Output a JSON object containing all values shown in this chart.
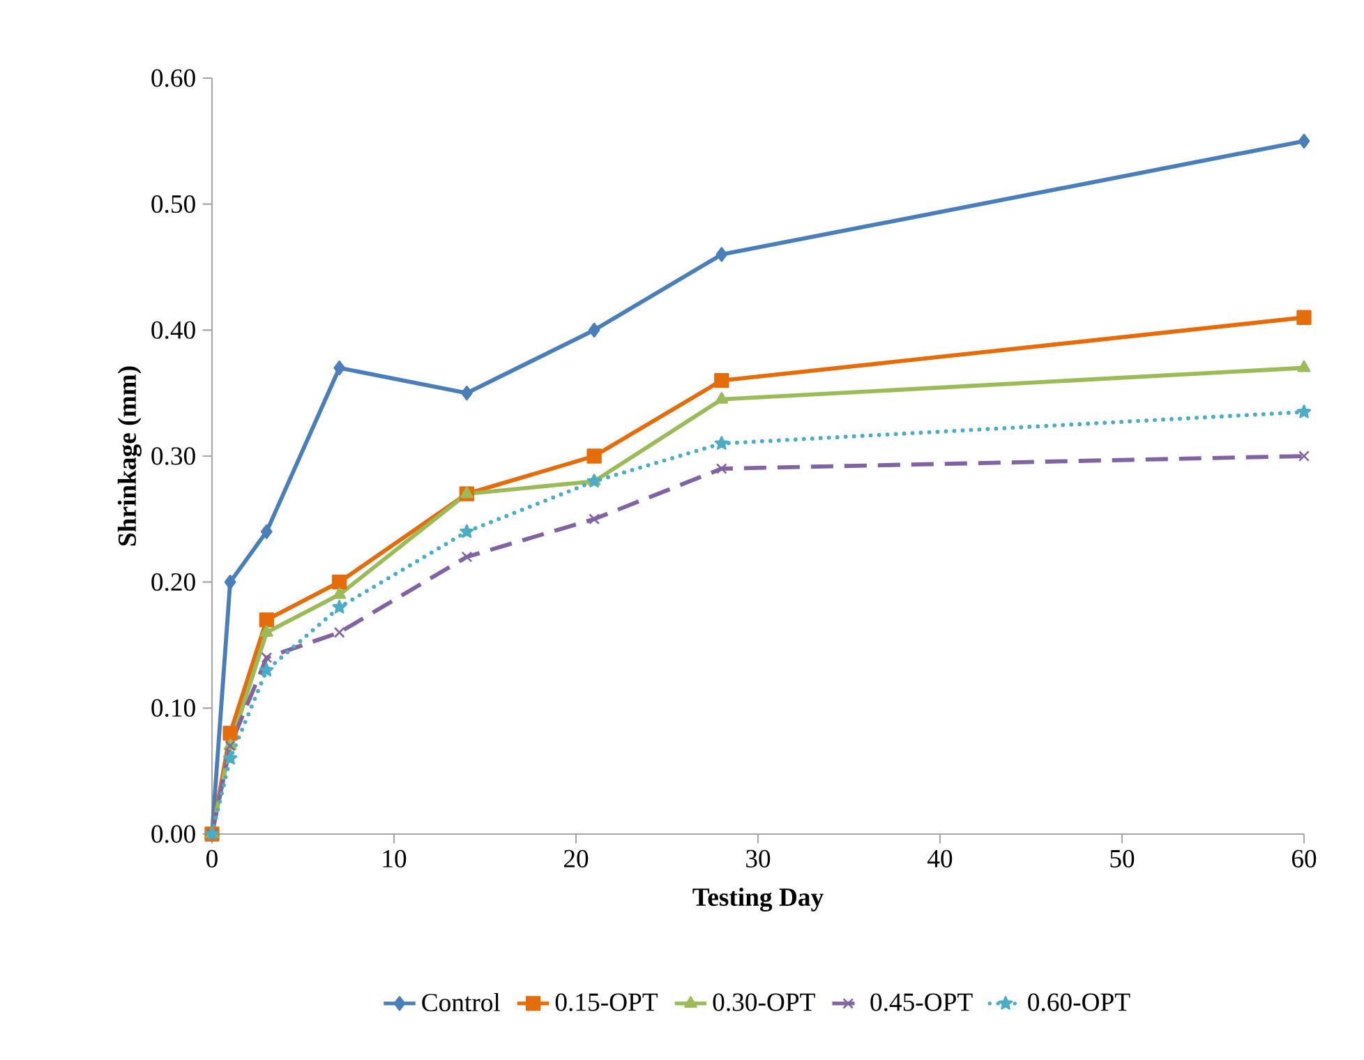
{
  "chart_data": {
    "type": "line",
    "xlabel": "Testing Day",
    "ylabel": "Shrinkage  (mm)",
    "x": [
      0,
      1,
      3,
      7,
      14,
      21,
      28,
      60
    ],
    "series": [
      {
        "name": "Control",
        "color": "#4a7ebb",
        "marker": "diamond",
        "line_style": "solid",
        "values": [
          0,
          0.2,
          0.24,
          0.37,
          0.35,
          0.4,
          0.46,
          0.55
        ]
      },
      {
        "name": "0.15-OPT",
        "color": "#e46c0a",
        "marker": "square",
        "line_style": "solid",
        "values": [
          0,
          0.08,
          0.17,
          0.2,
          0.27,
          0.3,
          0.36,
          0.41
        ]
      },
      {
        "name": "0.30-OPT",
        "color": "#9bbb59",
        "marker": "triangle",
        "line_style": "solid",
        "values": [
          0,
          0.07,
          0.16,
          0.19,
          0.27,
          0.28,
          0.345,
          0.37
        ]
      },
      {
        "name": "0.45-OPT",
        "color": "#8064a2",
        "marker": "cross",
        "line_style": "dashed",
        "values": [
          0,
          0.07,
          0.14,
          0.16,
          0.22,
          0.25,
          0.29,
          0.3
        ]
      },
      {
        "name": "0.60-OPT",
        "color": "#4bacc6",
        "marker": "star",
        "line_style": "dotted",
        "values": [
          0,
          0.06,
          0.13,
          0.18,
          0.24,
          0.28,
          0.31,
          0.335
        ]
      }
    ],
    "xlim": [
      0,
      60
    ],
    "xticks": [
      0,
      10,
      20,
      30,
      40,
      50,
      60
    ],
    "ylim": [
      0,
      0.6
    ],
    "yticks": [
      {
        "value": 0,
        "label": "0.00"
      },
      {
        "value": 0.1,
        "label": "0.10"
      },
      {
        "value": 0.2,
        "label": "0.20"
      },
      {
        "value": 0.3,
        "label": "0.30"
      },
      {
        "value": 0.4,
        "label": "0.40"
      },
      {
        "value": 0.5,
        "label": "0.50"
      },
      {
        "value": 0.6,
        "label": "0.60"
      }
    ],
    "grid": false,
    "legend": "bottom"
  }
}
